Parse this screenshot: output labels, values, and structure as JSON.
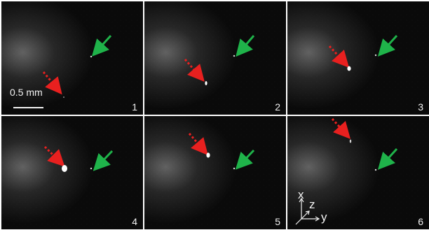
{
  "figure": {
    "panels": [
      {
        "label": "1",
        "arrows": [
          "green",
          "red-dashed"
        ]
      },
      {
        "label": "2",
        "arrows": [
          "green",
          "red-dashed"
        ]
      },
      {
        "label": "3",
        "arrows": [
          "green",
          "red-dashed"
        ]
      },
      {
        "label": "4",
        "arrows": [
          "green",
          "red-dashed"
        ]
      },
      {
        "label": "5",
        "arrows": [
          "green",
          "red-dashed"
        ]
      },
      {
        "label": "6",
        "arrows": [
          "green",
          "red-dashed"
        ]
      }
    ],
    "scale_bar": {
      "label": "0.5 mm"
    },
    "axes": {
      "x": "x",
      "z": "z",
      "y": "y"
    },
    "colors": {
      "green_arrow": "#1fb34a",
      "red_arrow": "#e8201f",
      "background": "#0a0a0a"
    }
  }
}
